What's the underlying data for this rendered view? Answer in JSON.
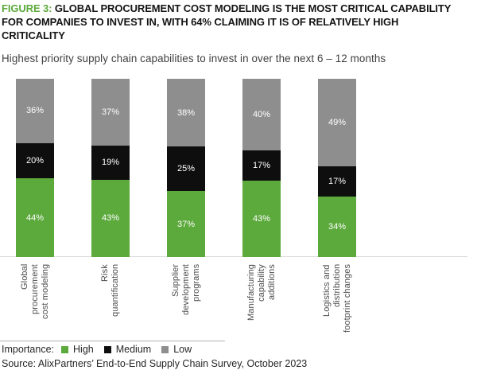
{
  "header": {
    "figure_label": "FIGURE 3:",
    "title": "GLOBAL PROCUREMENT COST MODELING IS THE MOST CRITICAL CAPABILITY FOR COMPANIES TO INVEST IN, WITH 64% CLAIMING IT IS OF RELATIVELY HIGH CRITICALITY",
    "subtitle": "Highest priority supply chain capabilities to invest in over the next 6 – 12 months"
  },
  "chart_data": {
    "type": "bar",
    "stacked": true,
    "title": "Highest priority supply chain capabilities to invest in over the next 6 – 12 months",
    "xlabel": "",
    "ylabel": "",
    "ylim": [
      0,
      100
    ],
    "unit": "%",
    "value_suffix": "%",
    "grid": false,
    "legend_position": "bottom",
    "categories": [
      "Global procurement cost modeling",
      "Risk quantification",
      "Supplier development programs",
      "Manufacturing capability additions",
      "Logistics and distribution footprint changes"
    ],
    "category_label_lines": [
      [
        "Global",
        "procurement",
        "cost modeling"
      ],
      [
        "Risk",
        "quantification"
      ],
      [
        "Supplier",
        "development",
        "programs"
      ],
      [
        "Manufacturing",
        "capability",
        "additions"
      ],
      [
        "Logistics and",
        "distribution",
        "footprint changes"
      ]
    ],
    "series": [
      {
        "name": "High",
        "color": "#5CA93C",
        "values": [
          44,
          43,
          37,
          43,
          34
        ]
      },
      {
        "name": "Medium",
        "color": "#0E0E0E",
        "values": [
          20,
          19,
          25,
          17,
          17
        ]
      },
      {
        "name": "Low",
        "color": "#8E8E8E",
        "values": [
          36,
          37,
          38,
          40,
          49
        ]
      }
    ]
  },
  "legend": {
    "title": "Importance:",
    "items": [
      {
        "label": "High",
        "color": "#5CA93C"
      },
      {
        "label": "Medium",
        "color": "#0E0E0E"
      },
      {
        "label": "Low",
        "color": "#8E8E8E"
      }
    ]
  },
  "footer": {
    "source": "Source: AlixPartners’ End-to-End Supply Chain Survey, October 2023"
  }
}
